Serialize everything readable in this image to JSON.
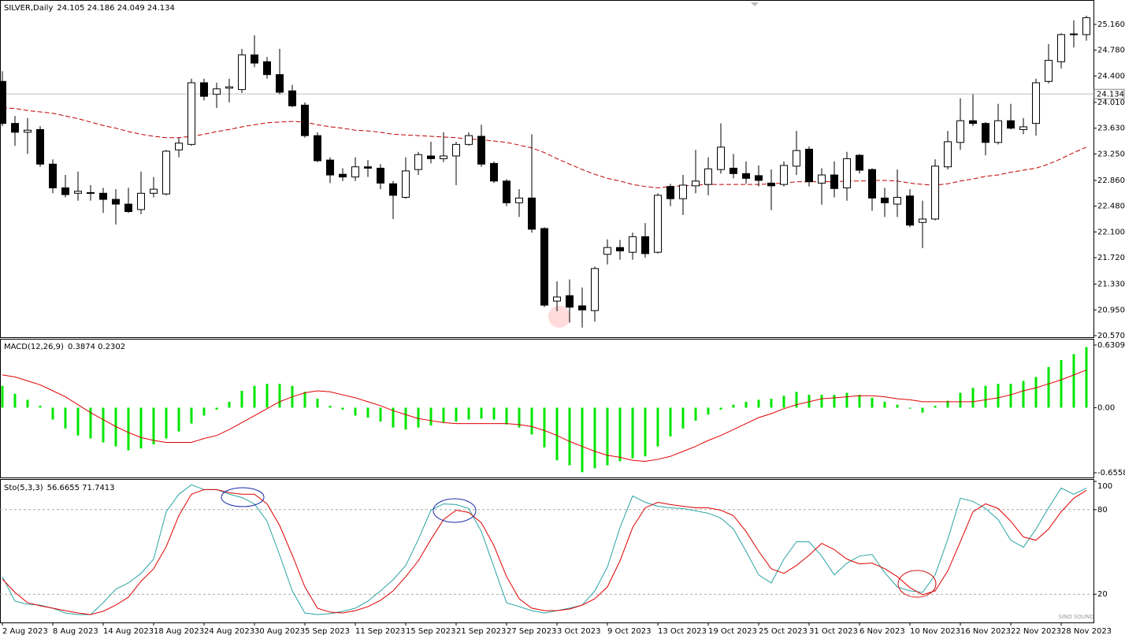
{
  "chart_data": [
    {
      "type": "candlestick",
      "title": "SILVER,Daily",
      "header": "24.105 24.186 24.049 24.134",
      "categories": [
        "2 Aug 2023",
        null,
        null,
        null,
        "8 Aug 2023",
        null,
        null,
        null,
        "14 Aug 2023",
        null,
        null,
        null,
        "18 Aug 2023",
        null,
        null,
        null,
        "24 Aug 2023",
        null,
        null,
        null,
        "30 Aug 2023",
        null,
        null,
        null,
        "5 Sep 2023",
        null,
        null,
        null,
        "11 Sep 2023",
        null,
        null,
        null,
        "15 Sep 2023",
        null,
        null,
        null,
        "21 Sep 2023",
        null,
        null,
        null,
        "27 Sep 2023",
        null,
        null,
        null,
        "3 Oct 2023",
        null,
        null,
        null,
        "9 Oct 2023",
        null,
        null,
        null,
        "13 Oct 2023",
        null,
        null,
        null,
        "19 Oct 2023",
        null,
        null,
        null,
        "25 Oct 2023",
        null,
        null,
        null,
        "31 Oct 2023",
        null,
        null,
        null,
        "6 Nov 2023",
        null,
        null,
        null,
        "10 Nov 2023",
        null,
        null,
        null,
        "16 Nov 2023",
        null,
        null,
        null,
        "22 Nov 2023",
        null,
        null,
        null,
        "28 Nov 2023",
        null,
        null
      ],
      "ohlc": [
        [
          24.32,
          24.47,
          23.66,
          23.7
        ],
        [
          23.7,
          23.81,
          23.37,
          23.57
        ],
        [
          23.57,
          23.78,
          23.25,
          23.6
        ],
        [
          23.61,
          23.66,
          23.06,
          23.1
        ],
        [
          23.1,
          23.17,
          22.67,
          22.75
        ],
        [
          22.75,
          22.94,
          22.61,
          22.65
        ],
        [
          22.67,
          22.99,
          22.56,
          22.7
        ],
        [
          22.67,
          22.79,
          22.56,
          22.68
        ],
        [
          22.67,
          22.75,
          22.38,
          22.58
        ],
        [
          22.58,
          22.73,
          22.21,
          22.51
        ],
        [
          22.51,
          22.75,
          22.38,
          22.4
        ],
        [
          22.43,
          22.99,
          22.36,
          22.67
        ],
        [
          22.67,
          22.91,
          22.61,
          22.73
        ],
        [
          22.66,
          23.31,
          22.64,
          23.29
        ],
        [
          23.31,
          23.49,
          23.2,
          23.41
        ],
        [
          23.39,
          24.36,
          23.37,
          24.3
        ],
        [
          24.3,
          24.36,
          24.04,
          24.1
        ],
        [
          24.13,
          24.3,
          23.93,
          24.21
        ],
        [
          24.22,
          24.36,
          24.01,
          24.24
        ],
        [
          24.2,
          24.8,
          24.15,
          24.71
        ],
        [
          24.71,
          25.0,
          24.53,
          24.59
        ],
        [
          24.61,
          24.68,
          24.36,
          24.42
        ],
        [
          24.42,
          24.8,
          24.13,
          24.16
        ],
        [
          24.18,
          24.27,
          23.94,
          23.96
        ],
        [
          23.97,
          24.01,
          23.49,
          23.52
        ],
        [
          23.52,
          23.57,
          23.13,
          23.15
        ],
        [
          23.16,
          23.2,
          22.82,
          22.94
        ],
        [
          22.95,
          23.04,
          22.85,
          22.91
        ],
        [
          22.91,
          23.2,
          22.85,
          23.06
        ],
        [
          23.06,
          23.16,
          22.91,
          23.04
        ],
        [
          23.04,
          23.1,
          22.73,
          22.82
        ],
        [
          22.81,
          22.85,
          22.29,
          22.64
        ],
        [
          22.61,
          23.2,
          22.59,
          23.0
        ],
        [
          23.02,
          23.28,
          22.94,
          23.24
        ],
        [
          23.22,
          23.43,
          23.11,
          23.18
        ],
        [
          23.18,
          23.57,
          23.13,
          23.22
        ],
        [
          23.22,
          23.43,
          22.79,
          23.39
        ],
        [
          23.39,
          23.57,
          23.37,
          23.52
        ],
        [
          23.51,
          23.68,
          23.06,
          23.1
        ],
        [
          23.11,
          23.14,
          22.82,
          22.85
        ],
        [
          22.85,
          22.88,
          22.48,
          22.53
        ],
        [
          22.53,
          22.73,
          22.32,
          22.6
        ],
        [
          22.6,
          23.54,
          22.09,
          22.14
        ],
        [
          22.15,
          22.17,
          20.99,
          21.02
        ],
        [
          21.08,
          21.37,
          20.93,
          21.14
        ],
        [
          21.16,
          21.4,
          20.76,
          20.99
        ],
        [
          21.01,
          21.28,
          20.69,
          20.95
        ],
        [
          20.94,
          21.59,
          20.78,
          21.56
        ],
        [
          21.77,
          21.99,
          21.62,
          21.87
        ],
        [
          21.87,
          21.98,
          21.69,
          21.82
        ],
        [
          21.8,
          22.09,
          21.69,
          22.03
        ],
        [
          22.03,
          22.23,
          21.72,
          21.78
        ],
        [
          21.8,
          22.67,
          21.78,
          22.64
        ],
        [
          22.77,
          22.81,
          22.48,
          22.59
        ],
        [
          22.59,
          22.94,
          22.35,
          22.79
        ],
        [
          22.78,
          23.31,
          22.67,
          22.85
        ],
        [
          22.8,
          23.2,
          22.64,
          23.03
        ],
        [
          23.02,
          23.7,
          22.96,
          23.35
        ],
        [
          23.04,
          23.25,
          22.89,
          22.96
        ],
        [
          22.96,
          23.14,
          22.81,
          22.89
        ],
        [
          22.93,
          23.08,
          22.77,
          22.86
        ],
        [
          22.82,
          23.02,
          22.42,
          22.78
        ],
        [
          22.8,
          23.14,
          22.77,
          23.08
        ],
        [
          23.07,
          23.59,
          22.94,
          23.3
        ],
        [
          23.32,
          23.36,
          22.77,
          22.84
        ],
        [
          22.82,
          23.04,
          22.5,
          22.94
        ],
        [
          22.94,
          23.14,
          22.61,
          22.74
        ],
        [
          22.75,
          23.28,
          22.56,
          23.18
        ],
        [
          23.23,
          23.25,
          22.96,
          23.01
        ],
        [
          23.02,
          23.04,
          22.41,
          22.6
        ],
        [
          22.6,
          22.75,
          22.32,
          22.53
        ],
        [
          22.51,
          23.02,
          22.32,
          22.61
        ],
        [
          22.63,
          22.73,
          22.17,
          22.2
        ],
        [
          22.24,
          22.56,
          21.86,
          22.29
        ],
        [
          22.29,
          23.17,
          22.27,
          23.07
        ],
        [
          23.06,
          23.59,
          23.02,
          23.43
        ],
        [
          23.42,
          24.07,
          23.31,
          23.74
        ],
        [
          23.74,
          24.13,
          23.66,
          23.7
        ],
        [
          23.7,
          23.72,
          23.23,
          23.42
        ],
        [
          23.42,
          23.99,
          23.39,
          23.74
        ],
        [
          23.74,
          23.99,
          23.61,
          23.63
        ],
        [
          23.61,
          23.78,
          23.54,
          23.65
        ],
        [
          23.7,
          24.36,
          23.52,
          24.3
        ],
        [
          24.32,
          24.87,
          24.29,
          24.63
        ],
        [
          24.61,
          25.03,
          24.51,
          25.01
        ],
        [
          25.01,
          25.22,
          24.82,
          25.02
        ],
        [
          25.01,
          25.29,
          24.92,
          25.26
        ]
      ],
      "up_color": "#ffffff",
      "down_color": "#000000",
      "ma": {
        "color": "#c00000",
        "values": [
          23.93,
          23.92,
          23.89,
          23.87,
          23.85,
          23.81,
          23.77,
          23.72,
          23.67,
          23.63,
          23.58,
          23.54,
          23.51,
          23.49,
          23.49,
          23.51,
          23.54,
          23.58,
          23.61,
          23.65,
          23.68,
          23.71,
          23.72,
          23.73,
          23.72,
          23.68,
          23.65,
          23.63,
          23.6,
          23.59,
          23.57,
          23.54,
          23.53,
          23.52,
          23.51,
          23.5,
          23.49,
          23.47,
          23.46,
          23.44,
          23.42,
          23.38,
          23.34,
          23.27,
          23.18,
          23.1,
          23.02,
          22.95,
          22.89,
          22.85,
          22.8,
          22.77,
          22.75,
          22.77,
          22.78,
          22.79,
          22.8,
          22.8,
          22.8,
          22.8,
          22.8,
          22.81,
          22.82,
          22.84,
          22.84,
          22.84,
          22.84,
          22.85,
          22.85,
          22.86,
          22.86,
          22.85,
          22.82,
          22.8,
          22.79,
          22.81,
          22.85,
          22.88,
          22.92,
          22.94,
          22.98,
          23.01,
          23.04,
          23.1,
          23.18,
          23.27,
          23.35
        ]
      },
      "ylim": [
        20.547,
        25.497
      ],
      "yticks": [
        {
          "value": 25.16,
          "label": "25.160"
        },
        {
          "value": 24.78,
          "label": "24.780"
        },
        {
          "value": 24.4,
          "label": "24.400"
        },
        {
          "value": 24.01,
          "label": "24.010"
        },
        {
          "value": 23.63,
          "label": "23.630"
        },
        {
          "value": 23.25,
          "label": "23.250"
        },
        {
          "value": 22.86,
          "label": "22.860"
        },
        {
          "value": 22.48,
          "label": "22.480"
        },
        {
          "value": 22.1,
          "label": "22.100"
        },
        {
          "value": 21.72,
          "label": "21.720"
        },
        {
          "value": 21.33,
          "label": "21.330"
        },
        {
          "value": 20.95,
          "label": "20.950"
        },
        {
          "value": 20.57,
          "label": "20.570"
        }
      ],
      "last_price": {
        "value": 24.134,
        "label": "24.134"
      }
    },
    {
      "type": "macd",
      "title": "MACD(12,26,9)",
      "header": "0.3874 0.2302",
      "histogram": {
        "color": "#00e600",
        "values": [
          0.22,
          0.14,
          0.08,
          0.02,
          -0.12,
          -0.21,
          -0.28,
          -0.31,
          -0.35,
          -0.39,
          -0.43,
          -0.41,
          -0.37,
          -0.31,
          -0.24,
          -0.16,
          -0.08,
          -0.02,
          0.06,
          0.17,
          0.22,
          0.24,
          0.24,
          0.22,
          0.16,
          0.09,
          0.02,
          -0.02,
          -0.08,
          -0.1,
          -0.14,
          -0.2,
          -0.22,
          -0.2,
          -0.18,
          -0.15,
          -0.14,
          -0.12,
          -0.11,
          -0.12,
          -0.17,
          -0.2,
          -0.27,
          -0.4,
          -0.53,
          -0.58,
          -0.65,
          -0.61,
          -0.58,
          -0.54,
          -0.51,
          -0.49,
          -0.39,
          -0.29,
          -0.21,
          -0.13,
          -0.07,
          -0.02,
          0.03,
          0.06,
          0.08,
          0.09,
          0.12,
          0.16,
          0.13,
          0.13,
          0.13,
          0.15,
          0.13,
          0.1,
          0.06,
          0.03,
          -0.01,
          -0.05,
          0.02,
          0.07,
          0.15,
          0.2,
          0.22,
          0.24,
          0.24,
          0.27,
          0.31,
          0.41,
          0.48,
          0.54,
          0.61
        ]
      },
      "signal": {
        "color": "#e00000",
        "values": [
          0.33,
          0.31,
          0.27,
          0.23,
          0.17,
          0.11,
          0.03,
          -0.05,
          -0.12,
          -0.19,
          -0.25,
          -0.3,
          -0.33,
          -0.35,
          -0.35,
          -0.35,
          -0.31,
          -0.28,
          -0.22,
          -0.15,
          -0.08,
          -0.01,
          0.06,
          0.11,
          0.15,
          0.17,
          0.16,
          0.13,
          0.1,
          0.06,
          0.02,
          -0.03,
          -0.07,
          -0.11,
          -0.13,
          -0.15,
          -0.16,
          -0.16,
          -0.16,
          -0.16,
          -0.16,
          -0.17,
          -0.19,
          -0.23,
          -0.28,
          -0.34,
          -0.39,
          -0.44,
          -0.48,
          -0.5,
          -0.53,
          -0.54,
          -0.52,
          -0.49,
          -0.44,
          -0.39,
          -0.33,
          -0.28,
          -0.22,
          -0.16,
          -0.1,
          -0.06,
          -0.01,
          0.03,
          0.06,
          0.09,
          0.1,
          0.11,
          0.12,
          0.12,
          0.11,
          0.09,
          0.08,
          0.06,
          0.06,
          0.06,
          0.06,
          0.06,
          0.08,
          0.1,
          0.13,
          0.17,
          0.2,
          0.24,
          0.28,
          0.33,
          0.38
        ]
      },
      "ylim": [
        -0.703,
        0.686
      ],
      "yticks": [
        0.6309,
        {
          "value": 0,
          "label": "0.00"
        },
        -0.6558
      ]
    },
    {
      "type": "stochastic",
      "title": "Sto(5,3,3)",
      "header": "56.6655 71.7413",
      "series": [
        {
          "color": "#2aa3a3",
          "values": [
            32.5,
            15.1,
            12.9,
            12.3,
            10.1,
            6.7,
            5.6,
            5.6,
            14.0,
            23.6,
            28.0,
            34.8,
            44.9,
            78.5,
            90.9,
            97.6,
            94.2,
            94.2,
            90.9,
            88.6,
            84.1,
            71.8,
            47.7,
            22.4,
            6.7,
            5.6,
            6.2,
            7.9,
            10.1,
            15.1,
            22.4,
            30.3,
            40.4,
            58.9,
            79.6,
            84.1,
            83.6,
            80.8,
            64.5,
            39.3,
            14.0,
            11.2,
            8.4,
            6.7,
            8.4,
            10.1,
            12.3,
            22.4,
            39.3,
            67.3,
            89.7,
            85.2,
            82.4,
            81.3,
            80.8,
            79.1,
            77.4,
            74.0,
            66.2,
            50.5,
            33.7,
            28.0,
            44.9,
            57.2,
            57.2,
            47.1,
            33.7,
            42.1,
            47.1,
            48.2,
            35.3,
            25.2,
            22.4,
            21.3,
            33.7,
            58.9,
            88.1,
            85.8,
            80.8,
            72.9,
            58.3,
            53.3,
            66.2,
            81.3,
            95.3,
            90.9,
            95.3
          ]
        },
        {
          "color": "#e00000",
          "values": [
            30.8,
            21.3,
            14.0,
            11.8,
            10.1,
            8.4,
            6.7,
            5.6,
            7.9,
            12.3,
            17.9,
            29.2,
            38.1,
            53.8,
            75.7,
            90.9,
            94.2,
            94.2,
            92.0,
            90.9,
            90.9,
            84.1,
            68.7,
            47.7,
            25.2,
            10.1,
            7.3,
            6.7,
            8.4,
            11.2,
            15.7,
            22.4,
            32.5,
            43.7,
            58.9,
            72.9,
            79.6,
            78.0,
            70.7,
            54.4,
            32.5,
            16.8,
            10.1,
            8.4,
            8.4,
            9.5,
            12.3,
            16.8,
            25.2,
            43.7,
            67.3,
            81.3,
            85.2,
            83.6,
            82.4,
            81.3,
            81.3,
            79.6,
            75.7,
            64.5,
            50.5,
            38.1,
            34.8,
            40.4,
            47.7,
            56.1,
            51.6,
            44.9,
            41.5,
            42.1,
            38.1,
            32.5,
            24.7,
            19.6,
            22.4,
            36.5,
            57.2,
            78.5,
            84.1,
            80.8,
            71.8,
            60.6,
            58.3,
            66.2,
            78.5,
            88.1,
            93.7
          ]
        }
      ],
      "ylim": [
        0,
        100
      ],
      "yticks": [
        20,
        80,
        100
      ],
      "levels": [
        20,
        80
      ]
    }
  ],
  "watermark": "SINO SOUND"
}
